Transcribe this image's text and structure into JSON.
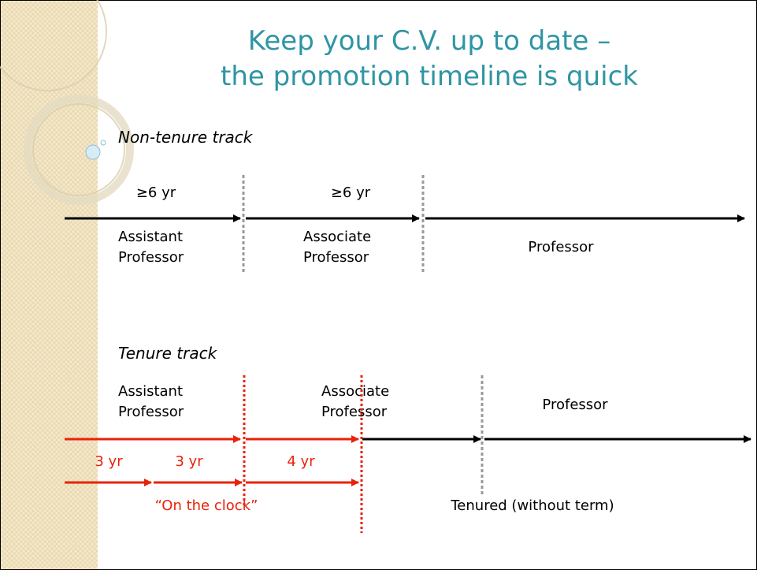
{
  "title": [
    "Keep your C.V. up to date –",
    "the promotion timeline is quick"
  ],
  "non_tenure": {
    "heading": "Non-tenure track",
    "durations": [
      "≥6 yr",
      "≥6 yr"
    ],
    "ranks": [
      [
        "Assistant",
        "Professor"
      ],
      [
        "Associate",
        "Professor"
      ],
      [
        "Professor"
      ]
    ]
  },
  "tenure": {
    "heading": "Tenure track",
    "ranks": [
      [
        "Assistant",
        "Professor"
      ],
      [
        "Associate",
        "Professor"
      ],
      [
        "Professor"
      ]
    ],
    "durations": [
      "3 yr",
      "3 yr",
      "4 yr"
    ],
    "clock_label": "“On the clock”",
    "tenured_label": "Tenured (without term)"
  }
}
